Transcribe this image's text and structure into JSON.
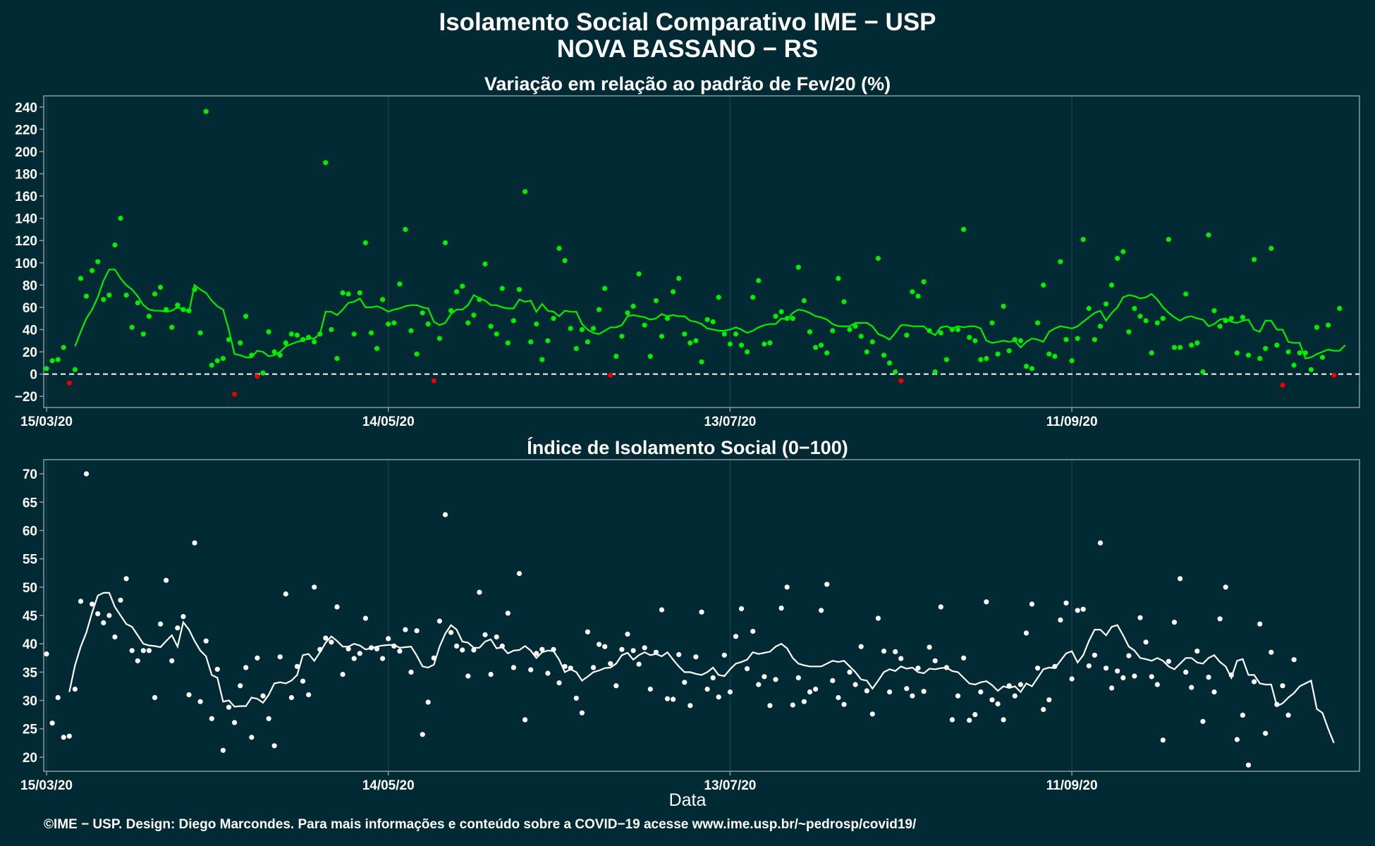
{
  "titles": {
    "main_line1": "Isolamento Social Comparativo IME − USP",
    "main_line2": "NOVA BASSANO − RS",
    "xlabel": "Data",
    "footer": "©IME − USP. Design: Diego Marcondes. Para mais informações e conteúdo sobre a COVID−19 acesse www.ime.usp.br/~pedrosp/covid19/"
  },
  "colors": {
    "background": "#022a35",
    "panel_border": "#8a9a9e",
    "grid": "#163f4a",
    "points_positive": "#00ee00",
    "points_negative": "#ee0000",
    "line_top": "#00ee00",
    "index_points": "#ffffff",
    "index_line": "#ffffff",
    "zero_line": "#ffffff"
  },
  "chart_data": [
    {
      "type": "scatter",
      "title": "Variação em relação ao padrão de Fev/20 (%)",
      "xlabel": "",
      "ylabel": "",
      "x_start": "15/03/20",
      "x_end": "31/10/20",
      "x_ticks": [
        "15/03/20",
        "14/05/20",
        "13/07/20",
        "11/09/20"
      ],
      "y_ticks": [
        240,
        220,
        200,
        180,
        160,
        140,
        120,
        100,
        80,
        60,
        40,
        20,
        0,
        -20
      ],
      "ylim": [
        -30,
        250
      ],
      "reference_line": 0,
      "grid": true,
      "series": [
        {
          "kind": "points",
          "values": [
            5,
            12,
            13,
            24,
            -8,
            4,
            86,
            70,
            93,
            101,
            67,
            71,
            116,
            140,
            71,
            42,
            64,
            36,
            52,
            72,
            78,
            58,
            42,
            62,
            58,
            57,
            76,
            37,
            236,
            8,
            12,
            14,
            31,
            -18,
            28,
            52,
            17,
            -2,
            1,
            38,
            20,
            17,
            28,
            36,
            35,
            31,
            33,
            29,
            36,
            190,
            40,
            14,
            73,
            72,
            36,
            73,
            118,
            37,
            23,
            67,
            45,
            46,
            81,
            130,
            39,
            18,
            55,
            45,
            -6,
            32,
            118,
            57,
            74,
            79,
            46,
            53,
            67,
            99,
            43,
            36,
            77,
            28,
            48,
            76,
            164,
            29,
            45,
            13,
            30,
            50,
            113,
            102,
            41,
            23,
            40,
            29,
            41,
            58,
            77,
            -1,
            16,
            34,
            55,
            61,
            90,
            44,
            16,
            66,
            34,
            50,
            74,
            86,
            36,
            28,
            30,
            11,
            49,
            47,
            69,
            36,
            27,
            36,
            26,
            20,
            69,
            84,
            27,
            28,
            52,
            56,
            50,
            50,
            96,
            66,
            38,
            24,
            26,
            19,
            39,
            86,
            65,
            40,
            43,
            34,
            20,
            29,
            104,
            17,
            10,
            2,
            -6,
            35,
            74,
            70,
            83,
            39,
            2,
            37,
            13,
            40,
            40,
            130,
            33,
            30,
            13,
            14,
            46,
            18,
            61,
            21,
            31,
            30,
            7,
            5,
            46,
            80,
            18,
            16,
            101,
            31,
            12,
            32,
            121,
            59,
            31,
            43,
            63,
            80,
            104,
            110,
            38,
            59,
            52,
            48,
            19,
            46,
            50,
            121,
            24,
            24,
            72,
            26,
            28,
            2,
            125,
            57,
            43,
            48,
            50,
            19,
            51,
            17,
            103,
            14,
            23,
            113,
            26,
            -10,
            20,
            8,
            19,
            19,
            4,
            42,
            15,
            44,
            -1,
            59
          ]
        },
        {
          "kind": "line",
          "values": [
            null,
            null,
            null,
            null,
            null,
            25,
            38,
            50,
            58,
            69,
            84,
            94,
            94,
            86,
            80,
            76,
            70,
            62,
            58,
            57,
            57,
            56,
            57,
            60,
            58,
            56,
            80,
            76,
            73,
            66,
            61,
            58,
            40,
            18,
            17,
            15,
            15,
            21,
            20,
            16,
            17,
            20,
            25,
            27,
            29,
            30,
            32,
            32,
            36,
            56,
            56,
            53,
            58,
            64,
            65,
            68,
            60,
            60,
            61,
            59,
            56,
            58,
            59,
            61,
            62,
            62,
            60,
            59,
            47,
            44,
            46,
            54,
            58,
            58,
            62,
            71,
            68,
            66,
            62,
            62,
            60,
            59,
            59,
            67,
            65,
            66,
            56,
            63,
            57,
            56,
            52,
            57,
            56,
            56,
            45,
            40,
            37,
            36,
            39,
            42,
            42,
            44,
            52,
            53,
            52,
            51,
            49,
            50,
            54,
            52,
            53,
            52,
            52,
            48,
            47,
            45,
            41,
            40,
            39,
            39,
            40,
            42,
            40,
            37,
            39,
            42,
            44,
            45,
            45,
            50,
            49,
            55,
            58,
            57,
            55,
            52,
            51,
            49,
            45,
            43,
            43,
            43,
            46,
            46,
            46,
            43,
            36,
            34,
            31,
            37,
            44,
            44,
            43,
            43,
            43,
            38,
            35,
            42,
            43,
            41,
            43,
            42,
            43,
            43,
            41,
            30,
            28,
            29,
            30,
            29,
            30,
            24,
            29,
            32,
            31,
            29,
            38,
            41,
            43,
            42,
            41,
            43,
            47,
            51,
            55,
            57,
            48,
            55,
            60,
            69,
            71,
            70,
            68,
            69,
            72,
            67,
            60,
            55,
            51,
            48,
            51,
            52,
            50,
            49,
            43,
            45,
            49,
            50,
            47,
            46,
            48,
            49,
            40,
            38,
            48,
            48,
            40,
            40,
            29,
            28,
            28,
            14,
            15,
            18,
            20,
            22,
            21,
            21,
            26
          ]
        }
      ]
    },
    {
      "type": "scatter",
      "title": "Índice de Isolamento Social (0−100)",
      "xlabel": "Data",
      "ylabel": "",
      "x_start": "15/03/20",
      "x_end": "31/10/20",
      "x_ticks": [
        "15/03/20",
        "14/05/20",
        "13/07/20",
        "11/09/20"
      ],
      "y_ticks": [
        70,
        65,
        60,
        55,
        50,
        45,
        40,
        35,
        30,
        25,
        20
      ],
      "ylim": [
        17.5,
        72.5
      ],
      "grid": true,
      "series": [
        {
          "kind": "points",
          "values": [
            38.2,
            26.0,
            30.5,
            23.5,
            23.7,
            32.0,
            47.5,
            70.0,
            47.0,
            45.3,
            43.7,
            45.0,
            41.2,
            47.7,
            51.5,
            38.8,
            37.0,
            38.8,
            38.8,
            30.5,
            43.5,
            51.2,
            37.0,
            42.8,
            44.8,
            31.0,
            57.8,
            29.8,
            40.5,
            26.8,
            35.5,
            21.2,
            28.8,
            26.1,
            32.6,
            35.8,
            23.5,
            37.5,
            30.8,
            26.8,
            22.0,
            37.7,
            48.8,
            30.5,
            36.0,
            33.4,
            31.0,
            50.0,
            39.0,
            41.0,
            40.3,
            46.5,
            34.6,
            39.1,
            37.4,
            38.3,
            44.5,
            39.3,
            39.1,
            37.4,
            40.9,
            39.6,
            38.7,
            42.5,
            35.0,
            42.3,
            24.0,
            29.7,
            37.5,
            44.0,
            62.8,
            42.0,
            39.6,
            38.9,
            34.3,
            38.9,
            49.1,
            41.6,
            34.6,
            41.2,
            39.6,
            45.4,
            35.8,
            52.4,
            26.6,
            35.4,
            38.3,
            39.0,
            34.8,
            39.0,
            33.1,
            36.0,
            35.7,
            30.4,
            27.8,
            42.1,
            35.8,
            39.9,
            39.5,
            36.5,
            32.6,
            39.0,
            41.7,
            38.8,
            36.4,
            39.3,
            32.0,
            38.5,
            46.0,
            30.3,
            30.2,
            38.1,
            33.2,
            29.1,
            37.7,
            45.6,
            32.0,
            34.0,
            30.6,
            38.0,
            31.5,
            41.3,
            46.2,
            35.6,
            42.2,
            32.8,
            34.2,
            29.1,
            33.7,
            46.3,
            50.0,
            29.2,
            34.0,
            29.8,
            31.5,
            32.0,
            45.9,
            50.5,
            33.5,
            30.5,
            29.3,
            35.0,
            32.8,
            39.5,
            31.7,
            27.6,
            44.5,
            38.7,
            31.5,
            38.6,
            37.4,
            32.1,
            30.8,
            35.7,
            31.6,
            39.4,
            37.0,
            46.5,
            35.8,
            26.6,
            30.8,
            37.5,
            26.5,
            27.5,
            31.5,
            47.4,
            30.1,
            29.4,
            26.6,
            32.6,
            30.8,
            32.8,
            41.9,
            47.0,
            35.7,
            28.4,
            30.1,
            36.0,
            44.2,
            47.2,
            33.8,
            45.9,
            46.1,
            36.1,
            38.0,
            57.8,
            35.7,
            32.2,
            35.2,
            34.0,
            37.9,
            34.3,
            44.6,
            40.3,
            34.2,
            32.8,
            23.0,
            36.9,
            43.8,
            51.5,
            35.0,
            32.3,
            38.7,
            26.3,
            34.1,
            31.5,
            44.4,
            50.0,
            34.5,
            23.1,
            27.4,
            18.6,
            33.3,
            43.5,
            24.2,
            38.5,
            29.3,
            32.6,
            27.4,
            37.2
          ]
        },
        {
          "kind": "line",
          "values": [
            null,
            null,
            null,
            null,
            31.5,
            36.2,
            39.5,
            42.0,
            45.5,
            48.5,
            49.0,
            49.0,
            46.5,
            45.0,
            43.5,
            43.0,
            41.5,
            40.0,
            39.7,
            39.6,
            39.4,
            40.5,
            41.5,
            39.5,
            43.8,
            42.5,
            40.5,
            38.8,
            37.8,
            34.5,
            34.0,
            29.8,
            30.0,
            28.9,
            29.0,
            29.0,
            30.5,
            30.3,
            29.6,
            31.0,
            33.0,
            33.2,
            33.0,
            33.5,
            34.5,
            38.0,
            38.2,
            37.0,
            38.5,
            40.2,
            41.3,
            40.5,
            39.5,
            39.5,
            40.0,
            39.7,
            39.0,
            39.2,
            39.5,
            39.7,
            39.8,
            39.8,
            39.3,
            39.4,
            39.5,
            37.9,
            36.0,
            35.8,
            36.3,
            39.5,
            41.8,
            43.3,
            42.5,
            40.4,
            40.2,
            39.3,
            39.3,
            40.4,
            40.8,
            39.2,
            39.4,
            38.3,
            38.8,
            38.9,
            39.6,
            38.8,
            37.5,
            38.5,
            38.8,
            38.7,
            37.2,
            35.0,
            35.5,
            35.0,
            33.5,
            34.2,
            35.0,
            35.3,
            35.7,
            35.8,
            36.5,
            38.0,
            38.4,
            37.2,
            38.0,
            38.5,
            38.0,
            38.2,
            37.8,
            38.5,
            37.2,
            36.0,
            35.0,
            35.0,
            34.7,
            34.5,
            35.0,
            35.8,
            34.5,
            34.3,
            35.5,
            36.5,
            36.8,
            37.2,
            38.5,
            38.2,
            38.4,
            38.6,
            39.5,
            40.0,
            39.2,
            37.5,
            36.5,
            36.2,
            36.0,
            36.0,
            36.0,
            36.5,
            37.0,
            36.8,
            37.0,
            36.0,
            35.0,
            33.7,
            33.5,
            32.1,
            33.5,
            35.0,
            35.5,
            35.2,
            36.0,
            35.6,
            35.8,
            35.0,
            34.8,
            35.6,
            35.5,
            35.7,
            35.8,
            35.2,
            35.0,
            34.0,
            33.0,
            32.8,
            33.2,
            33.4,
            32.7,
            31.7,
            32.5,
            32.2,
            32.5,
            31.5,
            33.0,
            32.5,
            34.0,
            35.5,
            35.8,
            35.7,
            37.0,
            38.3,
            38.7,
            36.7,
            38.0,
            40.5,
            42.5,
            42.5,
            41.5,
            43.0,
            43.3,
            41.5,
            39.5,
            38.8,
            37.5,
            37.3,
            37.0,
            37.5,
            37.0,
            36.0,
            35.5,
            36.5,
            37.5,
            37.5,
            36.7,
            36.5,
            37.5,
            38.0,
            36.8,
            36.0,
            34.0,
            37.0,
            37.3,
            34.5,
            34.5,
            33.0,
            32.8,
            32.8,
            29.0,
            29.5,
            30.5,
            31.3,
            32.5,
            33.0,
            33.5,
            28.5,
            27.8,
            25.0,
            22.5
          ]
        }
      ]
    }
  ]
}
